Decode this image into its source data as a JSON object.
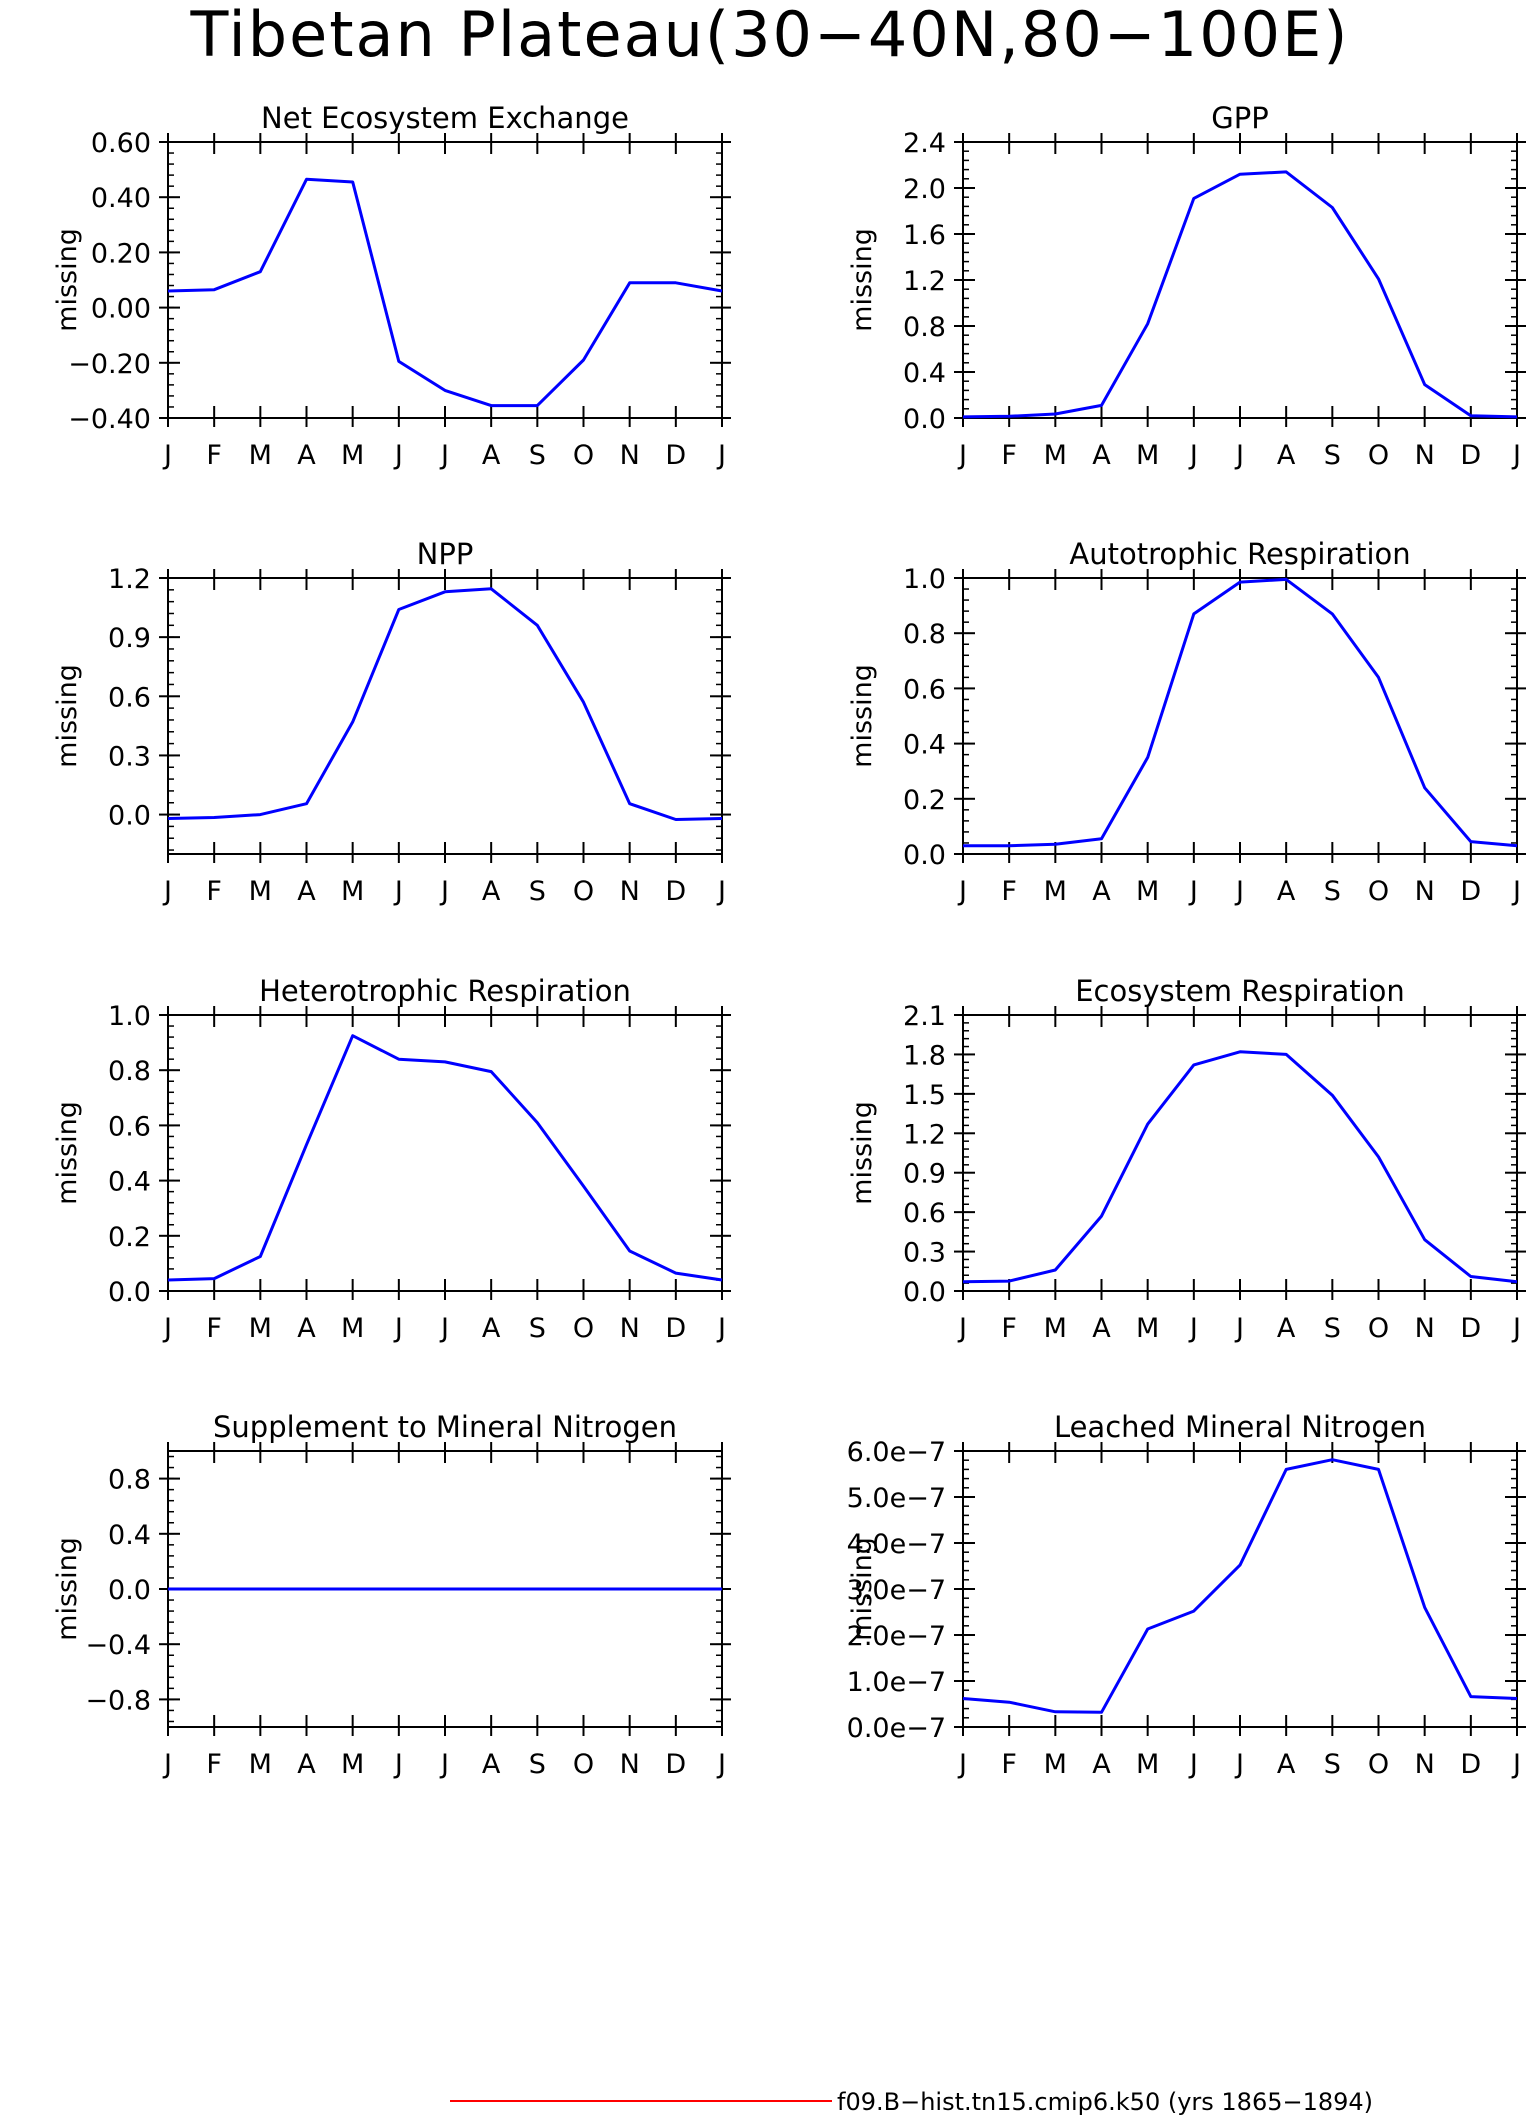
{
  "title": "Tibetan Plateau(30−40N,80−100E)",
  "colors": {
    "series": "#0000ff",
    "legend_line": "#ff0000",
    "axes": "#000000"
  },
  "legend": {
    "label": "f09.B−hist.tn15.cmip6.k50 (yrs 1865−1894)",
    "color": "#ff0000"
  },
  "chart_data": [
    {
      "id": "nee",
      "type": "line",
      "title": "Net Ecosystem Exchange",
      "xlabel": "",
      "ylabel": "missing",
      "x_ticks": [
        "J",
        "F",
        "M",
        "A",
        "M",
        "J",
        "J",
        "A",
        "S",
        "O",
        "N",
        "D",
        "J"
      ],
      "ylim": [
        -0.4,
        0.6
      ],
      "y_ticks": [
        -0.4,
        -0.2,
        0.0,
        0.2,
        0.4,
        0.6
      ],
      "y_tick_labels": [
        "−0.40",
        "−0.20",
        "0.00",
        "0.20",
        "0.40",
        "0.60"
      ],
      "series": [
        {
          "values": [
            0.06,
            0.065,
            0.13,
            0.465,
            0.455,
            -0.195,
            -0.3,
            -0.355,
            -0.355,
            -0.19,
            0.09,
            0.09,
            0.06
          ]
        }
      ]
    },
    {
      "id": "gpp",
      "type": "line",
      "title": "GPP",
      "xlabel": "",
      "ylabel": "missing",
      "x_ticks": [
        "J",
        "F",
        "M",
        "A",
        "M",
        "J",
        "J",
        "A",
        "S",
        "O",
        "N",
        "D",
        "J"
      ],
      "ylim": [
        0.0,
        2.4
      ],
      "y_ticks": [
        0.0,
        0.4,
        0.8,
        1.2,
        1.6,
        2.0,
        2.4
      ],
      "y_tick_labels": [
        "0.0",
        "0.4",
        "0.8",
        "1.2",
        "1.6",
        "2.0",
        "2.4"
      ],
      "series": [
        {
          "values": [
            0.01,
            0.015,
            0.035,
            0.11,
            0.82,
            1.91,
            2.12,
            2.14,
            1.83,
            1.21,
            0.29,
            0.02,
            0.01
          ]
        }
      ]
    },
    {
      "id": "npp",
      "type": "line",
      "title": "NPP",
      "xlabel": "",
      "ylabel": "missing",
      "x_ticks": [
        "J",
        "F",
        "M",
        "A",
        "M",
        "J",
        "J",
        "A",
        "S",
        "O",
        "N",
        "D",
        "J"
      ],
      "ylim": [
        -0.2,
        1.2
      ],
      "y_ticks": [
        0.0,
        0.3,
        0.6,
        0.9,
        1.2
      ],
      "y_tick_labels": [
        "0.0",
        "0.3",
        "0.6",
        "0.9",
        "1.2"
      ],
      "series": [
        {
          "values": [
            -0.02,
            -0.015,
            0.0,
            0.055,
            0.47,
            1.04,
            1.13,
            1.145,
            0.96,
            0.57,
            0.055,
            -0.025,
            -0.02
          ]
        }
      ]
    },
    {
      "id": "ar",
      "type": "line",
      "title": "Autotrophic Respiration",
      "xlabel": "",
      "ylabel": "missing",
      "x_ticks": [
        "J",
        "F",
        "M",
        "A",
        "M",
        "J",
        "J",
        "A",
        "S",
        "O",
        "N",
        "D",
        "J"
      ],
      "ylim": [
        0.0,
        1.0
      ],
      "y_ticks": [
        0.0,
        0.2,
        0.4,
        0.6,
        0.8,
        1.0
      ],
      "y_tick_labels": [
        "0.0",
        "0.2",
        "0.4",
        "0.6",
        "0.8",
        "1.0"
      ],
      "series": [
        {
          "values": [
            0.03,
            0.03,
            0.035,
            0.055,
            0.35,
            0.87,
            0.985,
            0.995,
            0.87,
            0.64,
            0.24,
            0.045,
            0.03
          ]
        }
      ]
    },
    {
      "id": "hr",
      "type": "line",
      "title": "Heterotrophic Respiration",
      "xlabel": "",
      "ylabel": "missing",
      "x_ticks": [
        "J",
        "F",
        "M",
        "A",
        "M",
        "J",
        "J",
        "A",
        "S",
        "O",
        "N",
        "D",
        "J"
      ],
      "ylim": [
        0.0,
        1.0
      ],
      "y_ticks": [
        0.0,
        0.2,
        0.4,
        0.6,
        0.8,
        1.0
      ],
      "y_tick_labels": [
        "0.0",
        "0.2",
        "0.4",
        "0.6",
        "0.8",
        "1.0"
      ],
      "series": [
        {
          "values": [
            0.04,
            0.045,
            0.125,
            0.53,
            0.925,
            0.84,
            0.83,
            0.795,
            0.61,
            0.38,
            0.145,
            0.065,
            0.04
          ]
        }
      ]
    },
    {
      "id": "er",
      "type": "line",
      "title": "Ecosystem Respiration",
      "xlabel": "",
      "ylabel": "missing",
      "x_ticks": [
        "J",
        "F",
        "M",
        "A",
        "M",
        "J",
        "J",
        "A",
        "S",
        "O",
        "N",
        "D",
        "J"
      ],
      "ylim": [
        0.0,
        2.1
      ],
      "y_ticks": [
        0.0,
        0.3,
        0.6,
        0.9,
        1.2,
        1.5,
        1.8,
        2.1
      ],
      "y_tick_labels": [
        "0.0",
        "0.3",
        "0.6",
        "0.9",
        "1.2",
        "1.5",
        "1.8",
        "2.1"
      ],
      "series": [
        {
          "values": [
            0.07,
            0.075,
            0.16,
            0.57,
            1.27,
            1.72,
            1.82,
            1.8,
            1.49,
            1.02,
            0.39,
            0.11,
            0.07
          ]
        }
      ]
    },
    {
      "id": "supn",
      "type": "line",
      "title": "Supplement to Mineral Nitrogen",
      "xlabel": "",
      "ylabel": "missing",
      "x_ticks": [
        "J",
        "F",
        "M",
        "A",
        "M",
        "J",
        "J",
        "A",
        "S",
        "O",
        "N",
        "D",
        "J"
      ],
      "ylim": [
        -1.0,
        1.0
      ],
      "y_ticks": [
        -0.8,
        -0.4,
        0.0,
        0.4,
        0.8
      ],
      "y_tick_labels": [
        "−0.8",
        "−0.4",
        "0.0",
        "0.4",
        "0.8"
      ],
      "series": [
        {
          "values": [
            0,
            0,
            0,
            0,
            0,
            0,
            0,
            0,
            0,
            0,
            0,
            0,
            0
          ]
        }
      ]
    },
    {
      "id": "leachn",
      "type": "line",
      "title": "Leached Mineral Nitrogen",
      "xlabel": "",
      "ylabel": "missing",
      "x_ticks": [
        "J",
        "F",
        "M",
        "A",
        "M",
        "J",
        "J",
        "A",
        "S",
        "O",
        "N",
        "D",
        "J"
      ],
      "ylim": [
        0.0,
        6e-07
      ],
      "y_ticks": [
        0.0,
        1e-07,
        2e-07,
        3e-07,
        4e-07,
        5e-07,
        6e-07
      ],
      "y_tick_labels": [
        "0.0e−7",
        "1.0e−7",
        "2.0e−7",
        "3.0e−7",
        "4.0e−7",
        "5.0e−7",
        "6.0e−7"
      ],
      "series": [
        {
          "values": [
            6.2e-08,
            5.4e-08,
            3.3e-08,
            3.2e-08,
            2.13e-07,
            2.52e-07,
            3.52e-07,
            5.6e-07,
            5.81e-07,
            5.6e-07,
            2.6e-07,
            6.6e-08,
            6.2e-08
          ]
        }
      ]
    }
  ]
}
